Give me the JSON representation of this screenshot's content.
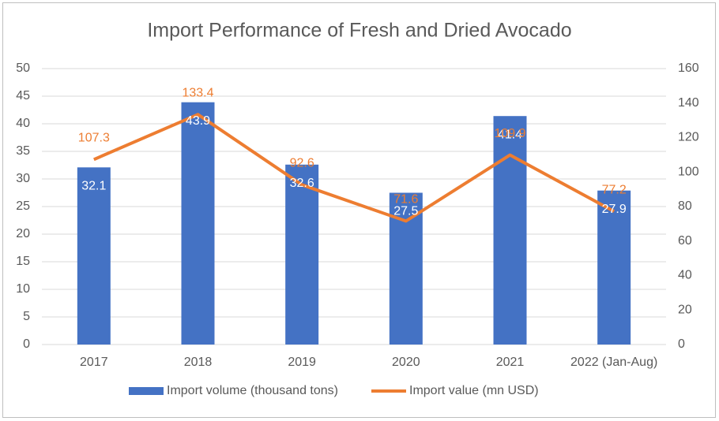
{
  "chart_data": {
    "type": "combo",
    "title": "Import Performance of Fresh and Dried Avocado",
    "categories": [
      "2017",
      "2018",
      "2019",
      "2020",
      "2021",
      "2022 (Jan-Aug)"
    ],
    "series": [
      {
        "name": "Import volume (thousand tons)",
        "type": "bar",
        "color": "#4472c4",
        "values": [
          32.1,
          43.9,
          32.6,
          27.5,
          41.4,
          27.9
        ]
      },
      {
        "name": "Import value (mn USD)",
        "type": "line",
        "axis": "y2",
        "color": "#ed7d31",
        "values": [
          107.3,
          133.4,
          92.6,
          71.6,
          109.9,
          77.2
        ]
      }
    ],
    "ylim": [
      0,
      50
    ],
    "yticks": [
      0,
      5,
      10,
      15,
      20,
      25,
      30,
      35,
      40,
      45,
      50
    ],
    "y2lim": [
      0,
      160
    ],
    "y2ticks": [
      0,
      20,
      40,
      60,
      80,
      100,
      120,
      140,
      160
    ],
    "grid": true,
    "legend": "bottom"
  }
}
